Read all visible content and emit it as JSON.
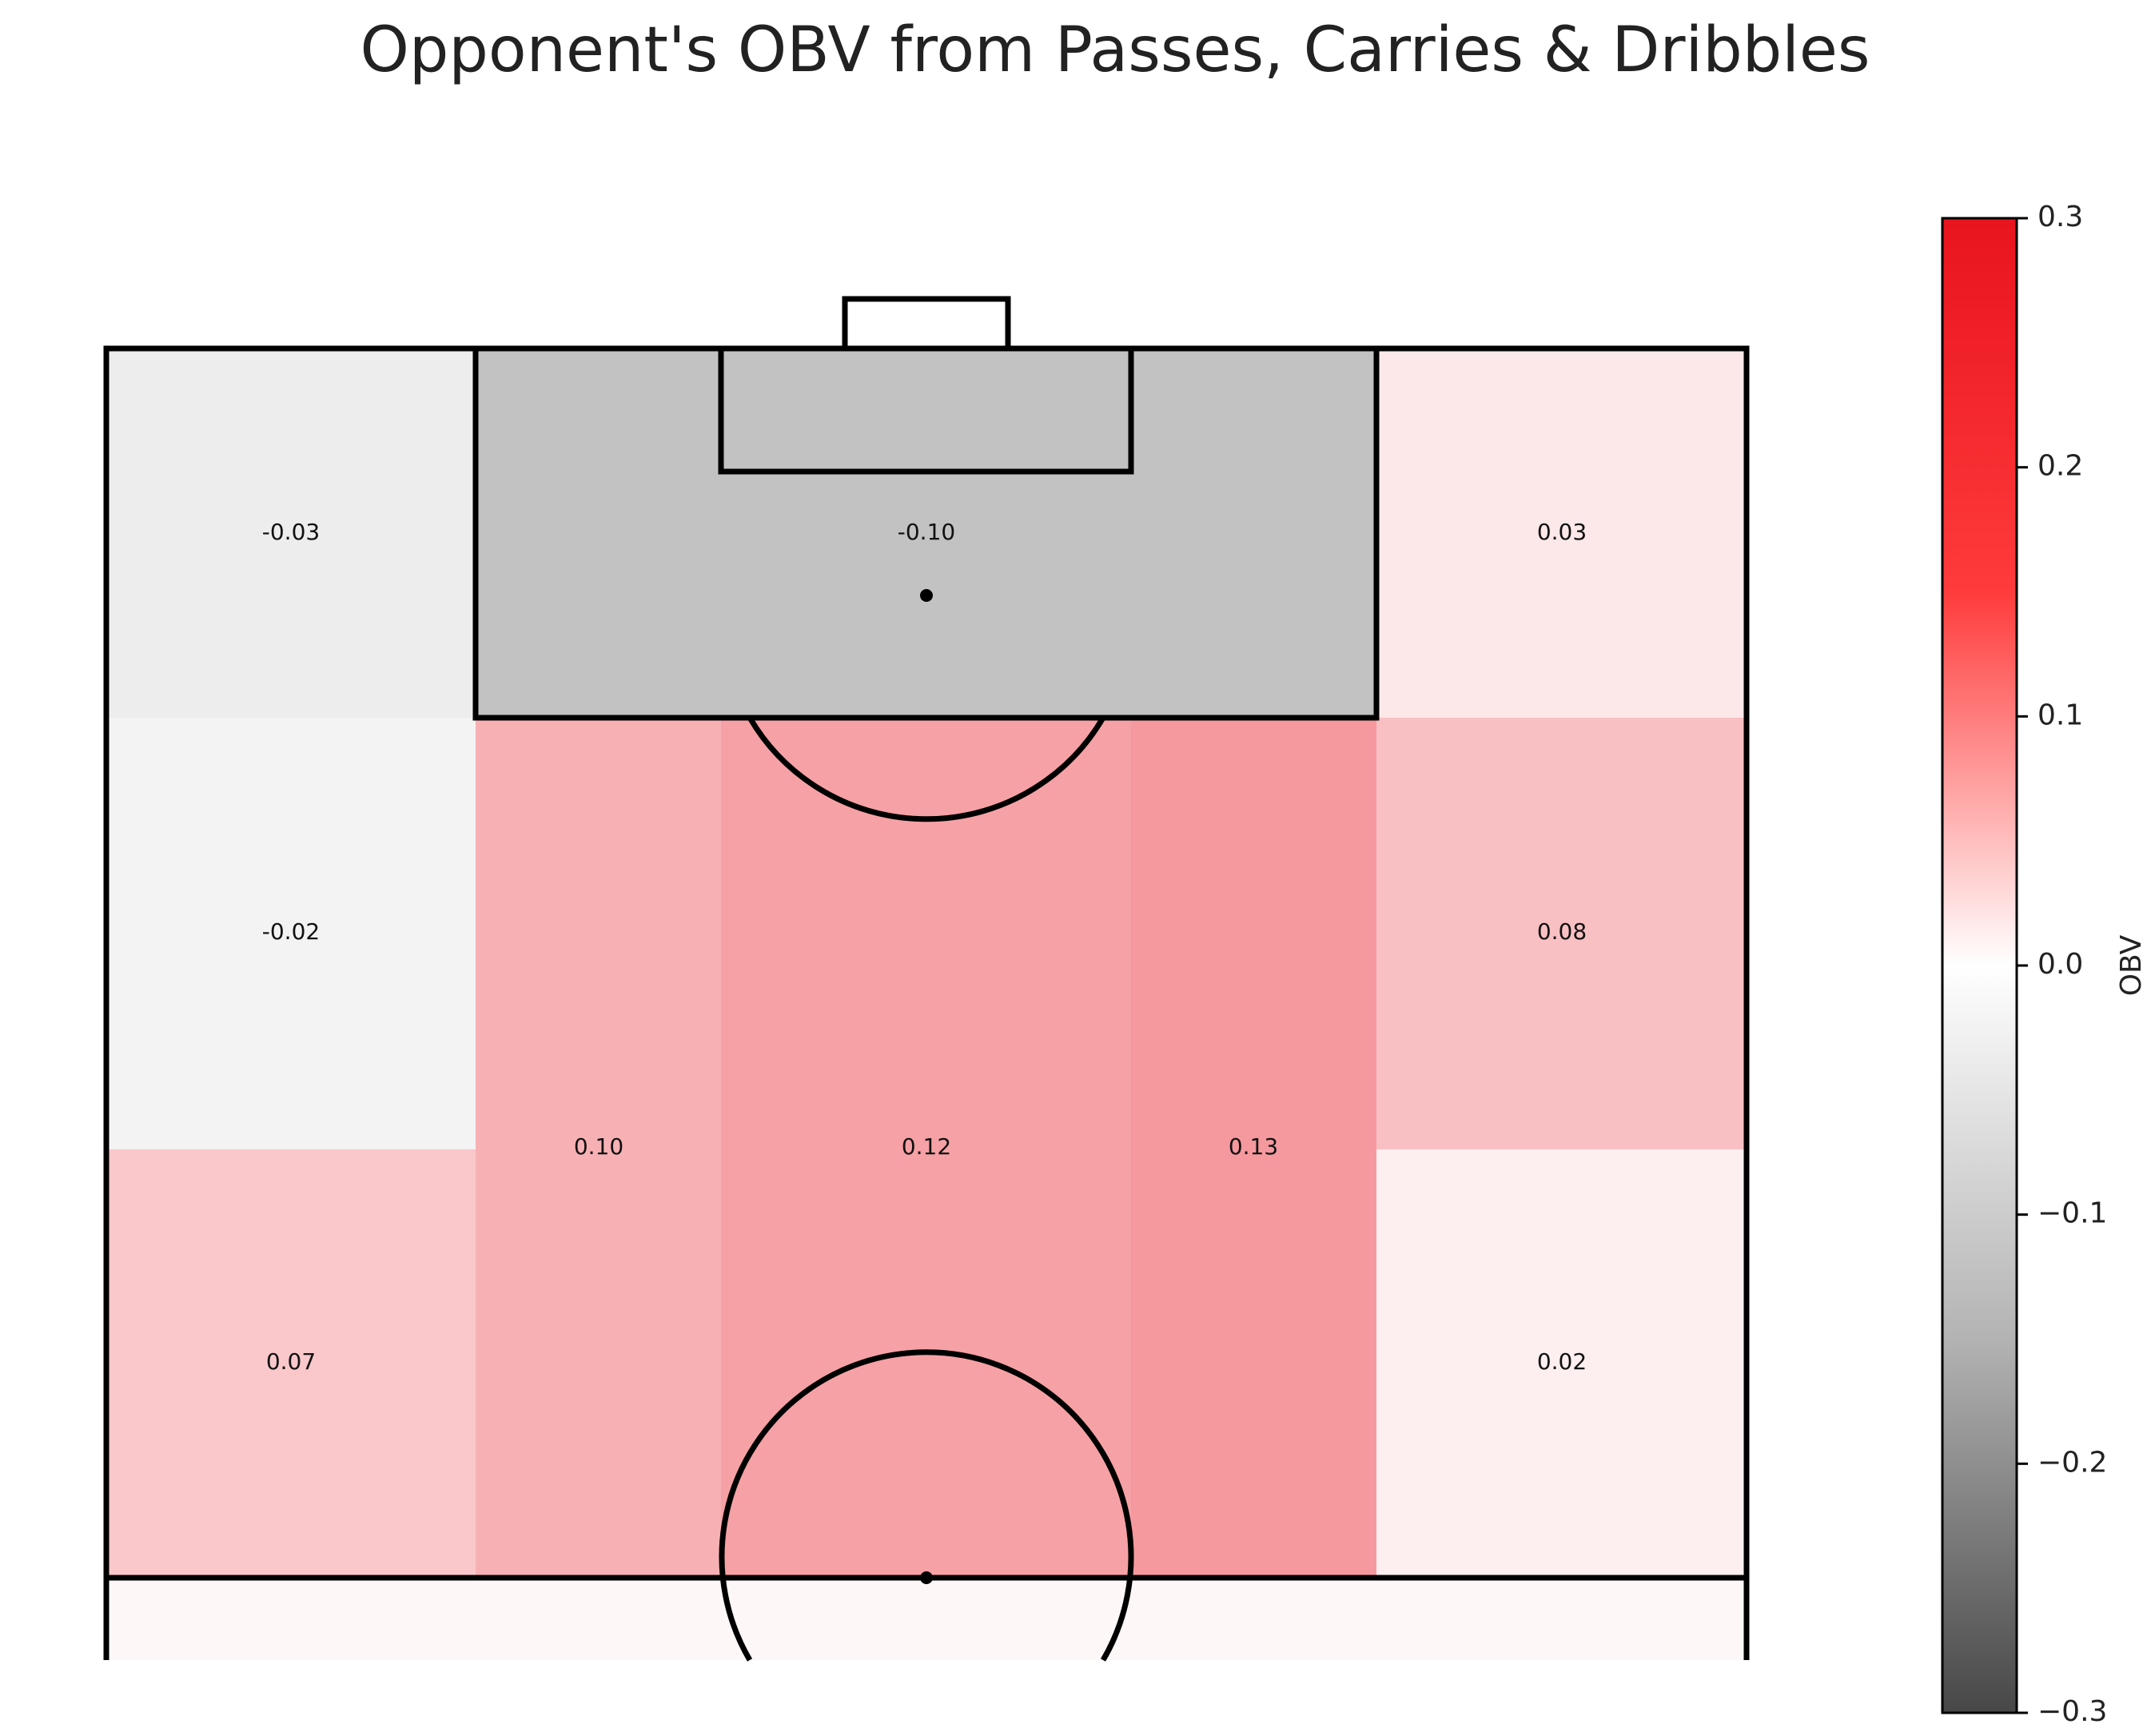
{
  "title": "Opponent's OBV from Passes, Carries & Dribbles",
  "chart_data": {
    "type": "heatmap",
    "title": "Opponent's OBV from Passes, Carries & Dribbles",
    "colorbar": {
      "label": "OBV",
      "range": [
        -0.3,
        0.3
      ],
      "ticks": [
        0.3,
        0.2,
        0.1,
        0.0,
        -0.1,
        -0.2,
        -0.3
      ],
      "tick_labels": [
        "0.3",
        "0.2",
        "0.1",
        "0.0",
        "−0.1",
        "−0.2",
        "−0.3"
      ],
      "colormap": [
        "#474747",
        "#ffffff",
        "#e8141e"
      ]
    },
    "zones": [
      {
        "zone": "left-wing-final-third",
        "value": -0.03,
        "label": "-0.03"
      },
      {
        "zone": "penalty-box",
        "value": -0.1,
        "label": "-0.10"
      },
      {
        "zone": "right-wing-final-third",
        "value": 0.03,
        "label": "0.03"
      },
      {
        "zone": "left-wing-upper-middle",
        "value": -0.02,
        "label": "-0.02"
      },
      {
        "zone": "right-wing-upper-middle",
        "value": 0.08,
        "label": "0.08"
      },
      {
        "zone": "left-half-space",
        "value": 0.1,
        "label": "0.10"
      },
      {
        "zone": "centre",
        "value": 0.12,
        "label": "0.12"
      },
      {
        "zone": "right-half-space",
        "value": 0.13,
        "label": "0.13"
      },
      {
        "zone": "left-wing-lower-middle",
        "value": 0.07,
        "label": "0.07"
      },
      {
        "zone": "right-wing-lower-middle",
        "value": 0.02,
        "label": "0.02"
      }
    ]
  }
}
